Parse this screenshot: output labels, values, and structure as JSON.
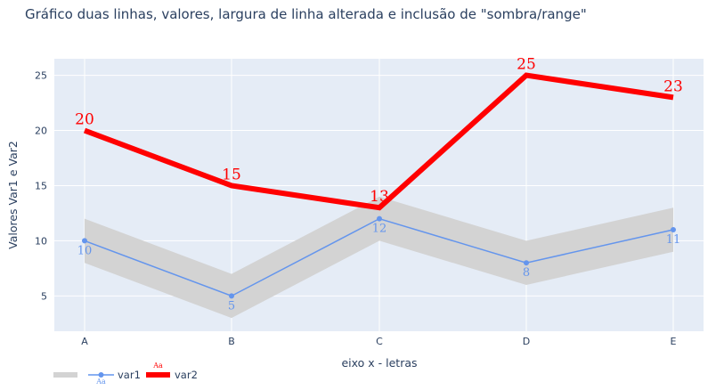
{
  "chart_data": {
    "type": "line",
    "title": "Gráfico duas linhas, valores, largura de linha alterada e inclusão de \"sombra/range\"",
    "xlabel": "eixo x - letras",
    "ylabel": "Valores Var1 e Var2",
    "categories": [
      "A",
      "B",
      "C",
      "D",
      "E"
    ],
    "yticks": [
      5,
      10,
      15,
      20,
      25
    ],
    "ylim": [
      1.8,
      26.5
    ],
    "grid": true,
    "legend_position": "bottom-left",
    "band": {
      "upper": [
        12,
        7,
        14,
        10,
        13
      ],
      "lower": [
        8,
        3,
        10,
        6,
        9
      ],
      "color": "#d3d3d3"
    },
    "series": [
      {
        "name": "var1",
        "values": [
          10,
          5,
          12,
          8,
          11
        ],
        "color": "#6495ed",
        "line_width": 1.5,
        "markers": true
      },
      {
        "name": "var2",
        "values": [
          20,
          15,
          13,
          25,
          23
        ],
        "color": "#ff0000",
        "line_width": 6,
        "markers": false
      }
    ],
    "legend_sample_text": "Aa",
    "colors": {
      "plot_bg": "#e5ecf6",
      "grid": "#ffffff",
      "text": "#2a3f5f"
    }
  }
}
